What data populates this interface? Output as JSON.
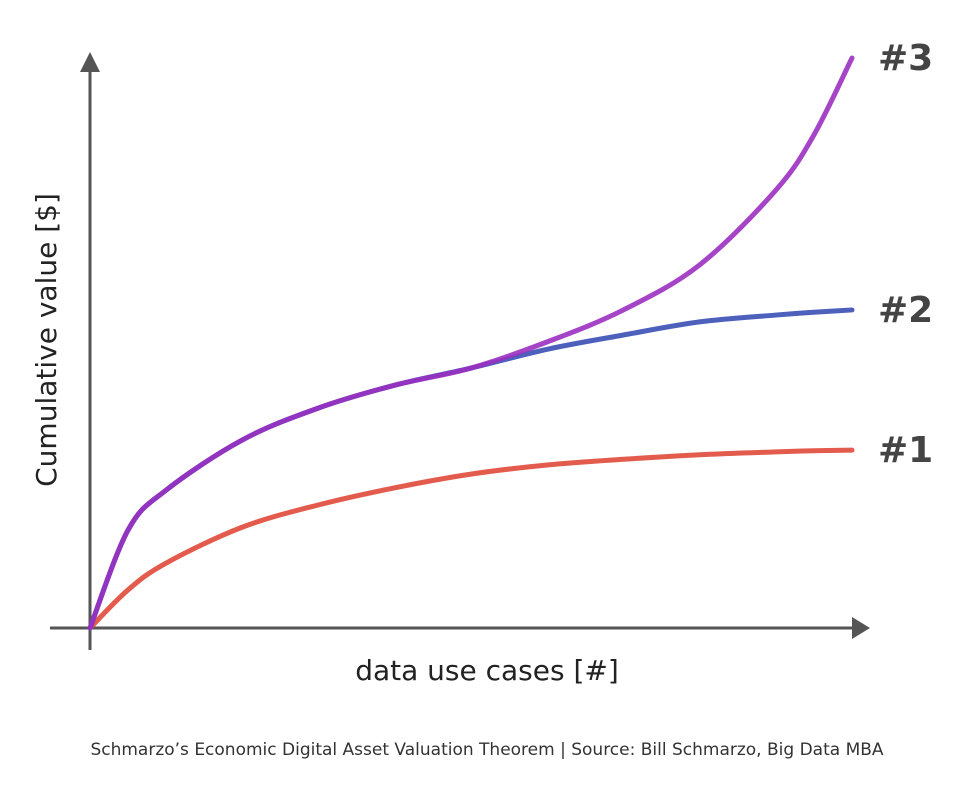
{
  "chart_data": {
    "type": "line",
    "x_label": "data use cases [#]",
    "y_label": "Cumulative value [$]",
    "caption": "Schmarzo’s Economic Digital Asset Valuation Theorem | Source: Bill Schmarzo, Big Data MBA",
    "x": [
      0,
      0.5,
      1,
      2,
      3,
      4,
      5,
      6,
      7,
      8,
      9,
      9.5,
      10
    ],
    "xlim": [
      0,
      10
    ],
    "ylim": [
      0,
      100
    ],
    "series": [
      {
        "name": "#1",
        "color": "#e0493a",
        "values": [
          0,
          6.7,
          11.4,
          17.7,
          21.6,
          24.6,
          27,
          28.6,
          29.6,
          30.4,
          30.9,
          31.1,
          31.2
        ]
      },
      {
        "name": "#2",
        "color": "#3a4fb5",
        "values": [
          0,
          17.2,
          24.2,
          33,
          38.6,
          42.6,
          45.6,
          48.9,
          51.4,
          53.7,
          54.9,
          55.4,
          55.8
        ]
      },
      {
        "name": "#3",
        "color": "#9b30c0",
        "values": [
          0,
          17.2,
          24.2,
          33,
          38.6,
          42.6,
          45.6,
          50.2,
          55.8,
          63.7,
          76.8,
          86.5,
          100
        ]
      }
    ]
  }
}
